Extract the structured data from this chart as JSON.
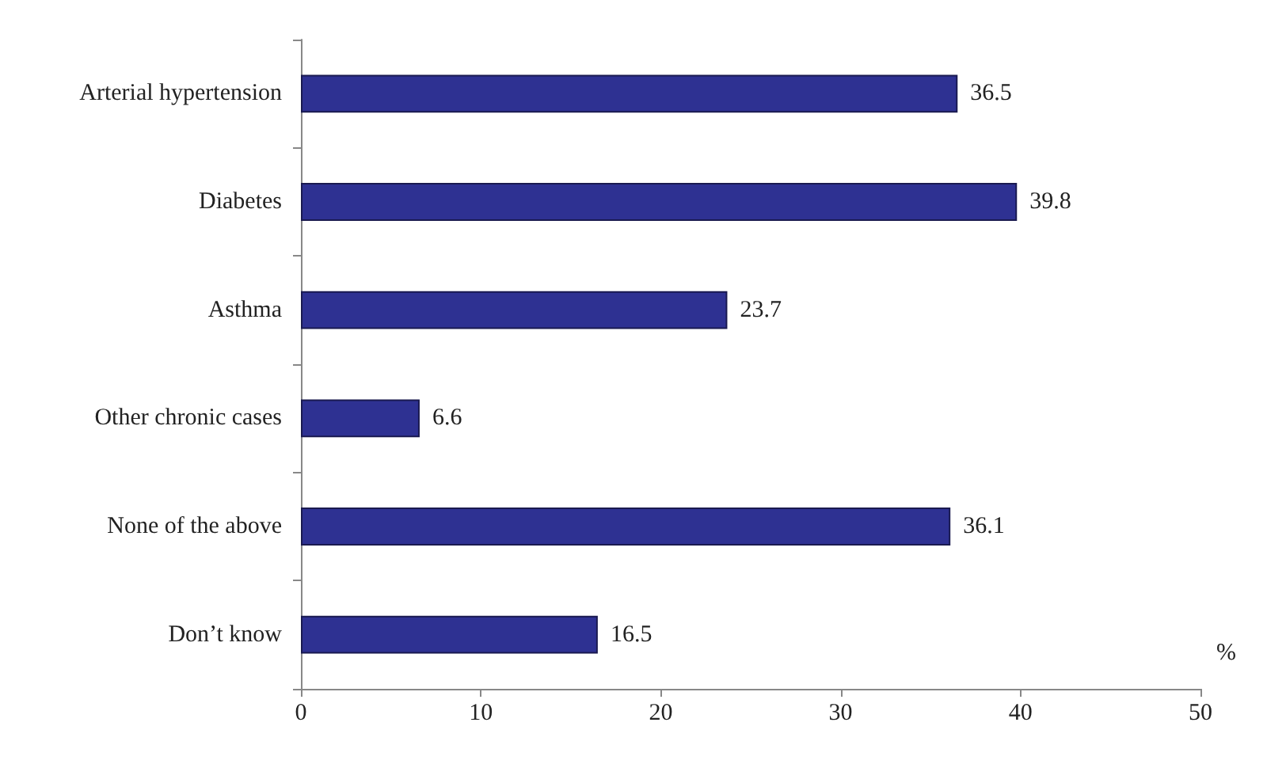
{
  "chart_data": {
    "type": "bar",
    "orientation": "horizontal",
    "categories": [
      "Arterial hypertension",
      "Diabetes",
      "Asthma",
      "Other chronic cases",
      "None of the above",
      "Don’t know"
    ],
    "values": [
      36.5,
      39.8,
      23.7,
      6.6,
      36.1,
      16.5
    ],
    "color": "#2e3192",
    "data_labels": true,
    "xlim": [
      0,
      50
    ],
    "xticks": [
      0,
      10,
      20,
      30,
      40,
      50
    ],
    "xlabel": "%",
    "grid": false
  }
}
